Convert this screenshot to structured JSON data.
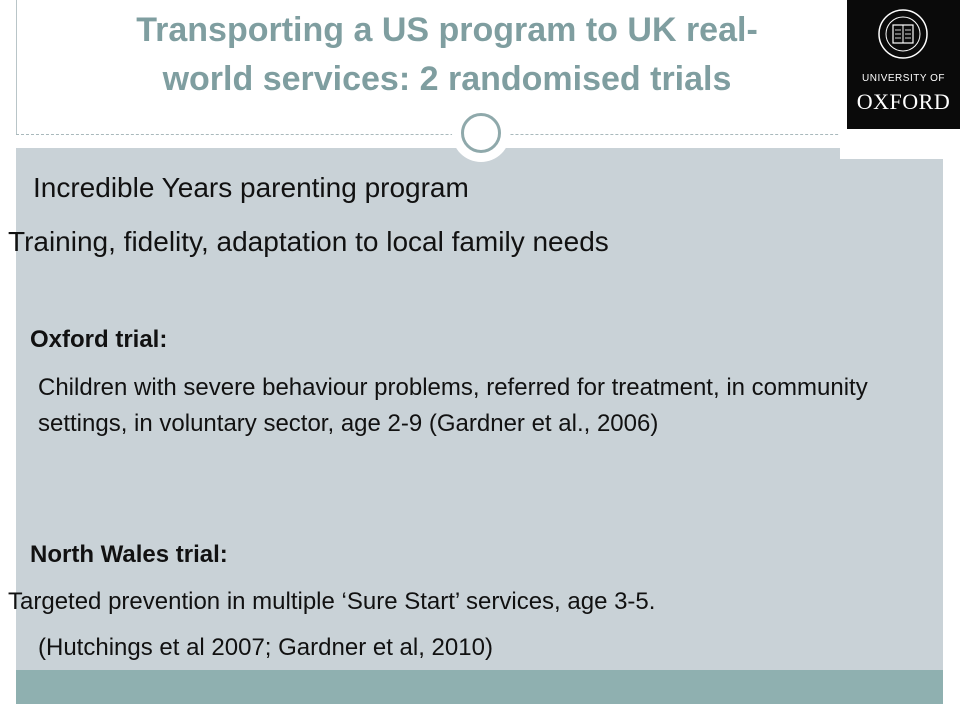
{
  "slide": {
    "title_line1": "Transporting a US program to UK real-",
    "title_line2": "world services:  2 randomised trials",
    "logo": {
      "university_of": "UNIVERSITY OF",
      "oxford": "OXFORD"
    },
    "body": {
      "program": "Incredible Years parenting program",
      "training": "Training, fidelity, adaptation to local family needs",
      "oxford_heading": "Oxford trial:",
      "oxford_text": " Children with severe behaviour problems, referred for treatment, in community settings, in voluntary sector, age 2-9 (Gardner et al., 2006)",
      "wales_heading": "North Wales trial:",
      "wales_text": "Targeted prevention in multiple ‘Sure Start’ services, age 3-5.",
      "wales_refs": "(Hutchings et al 2007; Gardner et al, 2010)"
    },
    "colors": {
      "title": "#7f9ea0",
      "content_bg": "#c9d2d7",
      "footer_band": "#8fb0b0",
      "ring": "#8fa9ab"
    }
  }
}
